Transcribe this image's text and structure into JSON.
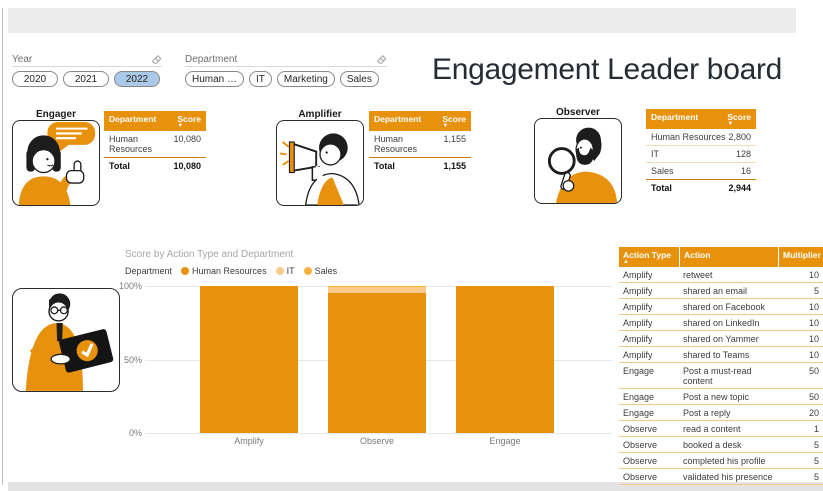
{
  "page_title": "Engagement Leader board",
  "slicers": {
    "year": {
      "label": "Year",
      "options": [
        "2020",
        "2021",
        "2022"
      ],
      "selected": "2022"
    },
    "department": {
      "label": "Department",
      "options": [
        "Human …",
        "IT",
        "Marketing",
        "Sales"
      ],
      "selected": ""
    }
  },
  "personas": [
    {
      "name": "Engager",
      "table": {
        "headers": [
          "Department",
          "Score"
        ],
        "sort_column": "Score",
        "rows": [
          [
            "Human Resources",
            "10,080"
          ]
        ],
        "total": [
          "Total",
          "10,080"
        ]
      }
    },
    {
      "name": "Amplifier",
      "table": {
        "headers": [
          "Department",
          "Score"
        ],
        "sort_column": "Score",
        "rows": [
          [
            "Human Resources",
            "1,155"
          ]
        ],
        "total": [
          "Total",
          "1,155"
        ]
      }
    },
    {
      "name": "Observer",
      "table": {
        "headers": [
          "Department",
          "Score"
        ],
        "sort_column": "Score",
        "rows": [
          [
            "Human Resources",
            "2,800"
          ],
          [
            "IT",
            "128"
          ],
          [
            "Sales",
            "16"
          ]
        ],
        "total": [
          "Total",
          "2,944"
        ]
      }
    }
  ],
  "chart_data": {
    "type": "bar",
    "variant": "stacked-100-percent",
    "title": "Score by Action Type and Department",
    "legend_label": "Department",
    "legend_position": "top",
    "categories": [
      "Amplify",
      "Observe",
      "Engage"
    ],
    "series": [
      {
        "name": "Human Resources",
        "color": "#E8910C",
        "values_pct": [
          100,
          95.1,
          100
        ]
      },
      {
        "name": "IT",
        "color": "#FBCB8A",
        "values_pct": [
          0,
          4.3,
          0
        ]
      },
      {
        "name": "Sales",
        "color": "#F5B33C",
        "values_pct": [
          0,
          0.6,
          0
        ]
      }
    ],
    "y_ticks": [
      "100%",
      "50%",
      "0%"
    ],
    "ylim": [
      0,
      100
    ],
    "grid": true
  },
  "action_table": {
    "headers": [
      "Action Type",
      "Action",
      "Multiplier"
    ],
    "sort_column": "Action Type",
    "rows": [
      [
        "Amplify",
        "retweet",
        "10"
      ],
      [
        "Amplify",
        "shared an email",
        "5"
      ],
      [
        "Amplify",
        "shared on Facebook",
        "10"
      ],
      [
        "Amplify",
        "shared on LinkedIn",
        "10"
      ],
      [
        "Amplify",
        "shared on Yammer",
        "10"
      ],
      [
        "Amplify",
        "shared to Teams",
        "10"
      ],
      [
        "Engage",
        "Post a must-read content",
        "50"
      ],
      [
        "Engage",
        "Post a new topic",
        "50"
      ],
      [
        "Engage",
        "Post a reply",
        "20"
      ],
      [
        "Observe",
        "read a content",
        "1"
      ],
      [
        "Observe",
        "booked a desk",
        "5"
      ],
      [
        "Observe",
        "completed his profile",
        "5"
      ],
      [
        "Observe",
        "validated his presence",
        "5"
      ]
    ]
  },
  "colors": {
    "accent_orange": "#E8910C",
    "it_light": "#FBCB8A",
    "sales_amber": "#F5B33C",
    "selected_slicer_blue": "#ABC9E8"
  }
}
